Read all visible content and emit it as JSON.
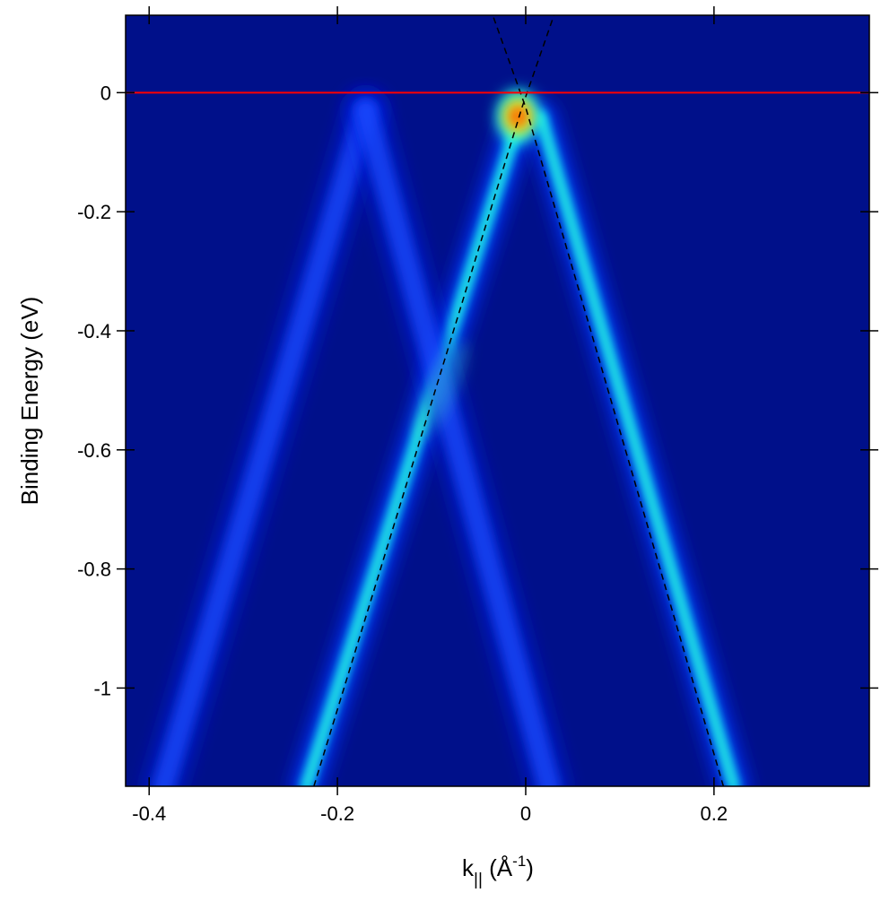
{
  "chart_data": {
    "type": "heatmap",
    "xlabel_base": "k",
    "xlabel_sub": "||",
    "xlabel_unit_open": " (Å",
    "xlabel_unit_sup": "-1",
    "xlabel_unit_close": ")",
    "ylabel": "Binding Energy (eV)",
    "xlim": [
      -0.425,
      0.365
    ],
    "ylim": [
      -1.165,
      0.13
    ],
    "x_ticks": [
      {
        "value": -0.4,
        "label": "-0.4"
      },
      {
        "value": -0.2,
        "label": "-0.2"
      },
      {
        "value": 0.0,
        "label": "0"
      },
      {
        "value": 0.2,
        "label": "0.2"
      }
    ],
    "y_ticks": [
      {
        "value": 0.0,
        "label": "0"
      },
      {
        "value": -0.2,
        "label": "-0.2"
      },
      {
        "value": -0.4,
        "label": "-0.4"
      },
      {
        "value": -0.6,
        "label": "-0.6"
      },
      {
        "value": -0.8,
        "label": "-0.8"
      },
      {
        "value": -1.0,
        "label": "-1"
      }
    ],
    "colormap": [
      "#00008b",
      "#0000ff",
      "#00c0ff",
      "#00ffff",
      "#80ff80",
      "#ffff00",
      "#ff0000"
    ],
    "background_color": "#00108a",
    "fermi_level": {
      "y": 0.0,
      "color": "#ff0000"
    },
    "dirac_point": {
      "x": 0.0,
      "y": -0.035
    },
    "fit_lines": [
      {
        "points": [
          [
            -0.225,
            -1.165
          ],
          [
            -0.004,
            -0.025
          ],
          [
            0.03,
            0.13
          ]
        ]
      },
      {
        "points": [
          [
            0.21,
            -1.165
          ],
          [
            0.0,
            -0.025
          ],
          [
            -0.035,
            0.13
          ]
        ]
      }
    ],
    "bands": [
      {
        "name": "main-left",
        "points": [
          [
            -0.006,
            -0.04
          ],
          [
            -0.233,
            -1.165
          ]
        ],
        "intensity": 0.55,
        "width": 0.011
      },
      {
        "name": "main-right",
        "points": [
          [
            0.016,
            -0.04
          ],
          [
            0.221,
            -1.165
          ]
        ],
        "intensity": 0.55,
        "width": 0.011
      },
      {
        "name": "replica-left",
        "points": [
          [
            -0.17,
            -0.03
          ],
          [
            -0.385,
            -1.165
          ]
        ],
        "intensity": 0.22,
        "width": 0.014
      },
      {
        "name": "replica-right",
        "points": [
          [
            -0.17,
            -0.03
          ],
          [
            0.025,
            -1.165
          ]
        ],
        "intensity": 0.22,
        "width": 0.014
      }
    ],
    "hotspots": [
      {
        "x": -0.008,
        "y": -0.04,
        "intensity": 1.0
      },
      {
        "x": -0.09,
        "y": -0.5,
        "intensity": 0.28
      }
    ]
  }
}
